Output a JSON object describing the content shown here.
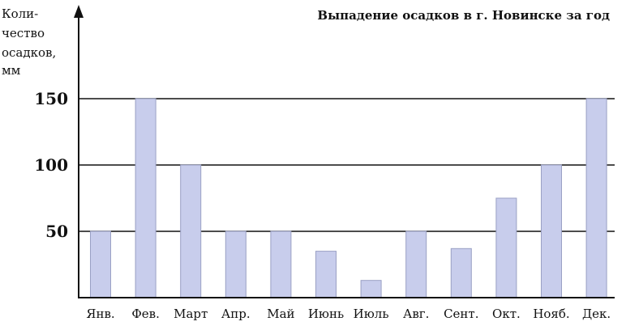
{
  "chart_data": {
    "type": "bar",
    "title": "Выпадение осадков в г. Новинске за год",
    "ylabel_lines": [
      "Коли-",
      "чество",
      "осадков,",
      "мм"
    ],
    "categories": [
      "Янв.",
      "Фев.",
      "Март",
      "Апр.",
      "Май",
      "Июнь",
      "Июль",
      "Авг.",
      "Сент.",
      "Окт.",
      "Нояб.",
      "Дек."
    ],
    "values": [
      50,
      150,
      100,
      50,
      50,
      35,
      13,
      50,
      37,
      75,
      100,
      150
    ],
    "yticks": [
      50,
      100,
      150
    ],
    "ylim": [
      0,
      170
    ],
    "grid": true,
    "colors": {
      "bar_fill": "#c8cdec",
      "bar_edge": "#9aa0c4",
      "axis": "#111111"
    }
  }
}
